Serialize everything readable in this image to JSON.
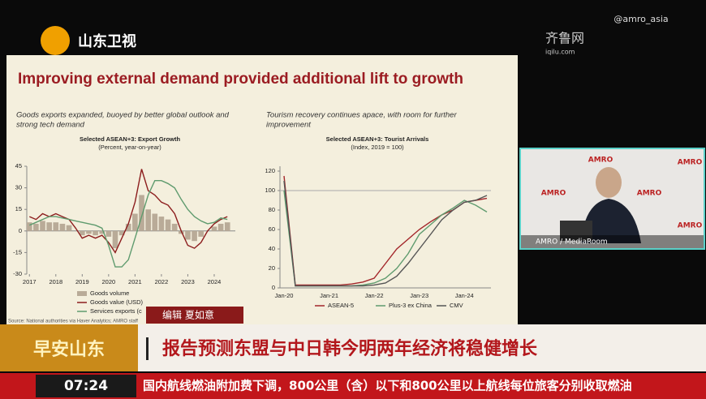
{
  "slide": {
    "title": "Improving external demand provided additional lift to growth",
    "left_caption_1": "Goods exports expanded, buoyed by better global outlook and",
    "left_caption_2": "strong tech demand",
    "right_caption_1": "Tourism recovery continues apace, with room for further",
    "right_caption_2": "improvement",
    "source": "Source: National authorities via Haver Analytics; AMRO staff"
  },
  "chart_data": [
    {
      "type": "line",
      "title": "Selected ASEAN+3: Export Growth",
      "subtitle": "(Percent, year-on-year)",
      "x": [
        2017,
        2017.25,
        2017.5,
        2017.75,
        2018,
        2018.25,
        2018.5,
        2018.75,
        2019,
        2019.25,
        2019.5,
        2019.75,
        2020,
        2020.25,
        2020.5,
        2020.75,
        2021,
        2021.25,
        2021.5,
        2021.75,
        2022,
        2022.25,
        2022.5,
        2022.75,
        2023,
        2023.25,
        2023.5,
        2023.75,
        2024,
        2024.25,
        2024.5
      ],
      "xlim": [
        2016.9,
        2024.8
      ],
      "xticks": [
        2017,
        2018,
        2019,
        2020,
        2021,
        2022,
        2023,
        2024
      ],
      "ylim": [
        -30,
        45
      ],
      "yticks": [
        -30,
        -15,
        0,
        15,
        30,
        45
      ],
      "series": [
        {
          "name": "Goods volume",
          "style": "bar",
          "color": "#b9ab98",
          "values": [
            6,
            5,
            7,
            6,
            6,
            5,
            4,
            0,
            -3,
            -2,
            -3,
            -2,
            -4,
            -12,
            -3,
            5,
            12,
            25,
            15,
            12,
            10,
            8,
            5,
            -2,
            -6,
            -7,
            -4,
            0,
            3,
            5,
            6
          ]
        },
        {
          "name": "Goods value (USD)",
          "style": "line",
          "color": "#8c1d1d",
          "values": [
            10,
            8,
            12,
            10,
            12,
            10,
            8,
            2,
            -5,
            -3,
            -5,
            -3,
            -8,
            -15,
            -5,
            5,
            20,
            43,
            28,
            25,
            20,
            18,
            12,
            0,
            -10,
            -12,
            -8,
            0,
            5,
            8,
            10
          ]
        },
        {
          "name": "Services exports (c",
          "style": "line",
          "color": "#5f9b6e",
          "values": [
            4,
            6,
            8,
            10,
            10,
            9,
            8,
            7,
            6,
            5,
            4,
            2,
            -10,
            -25,
            -25,
            -20,
            -5,
            10,
            25,
            35,
            35,
            33,
            30,
            22,
            15,
            10,
            7,
            5,
            6,
            9,
            8
          ]
        }
      ]
    },
    {
      "type": "line",
      "title": "Selected ASEAN+3: Tourist Arrivals",
      "subtitle": "(Index, 2019 = 100)",
      "categories": [
        "Jan-20",
        null,
        null,
        null,
        "Jan-21",
        null,
        null,
        null,
        "Jan-22",
        null,
        null,
        null,
        "Jan-23",
        null,
        null,
        null,
        "Jan-24",
        null,
        null
      ],
      "ylim": [
        0,
        125
      ],
      "yticks": [
        0,
        20,
        40,
        60,
        80,
        100,
        120
      ],
      "hline": 100,
      "series": [
        {
          "name": "ASEAN-5",
          "style": "line",
          "color": "#a3262a",
          "values": [
            115,
            3,
            3,
            3,
            3,
            3,
            4,
            6,
            10,
            25,
            40,
            50,
            60,
            68,
            75,
            80,
            88,
            90,
            92
          ]
        },
        {
          "name": "Plus-3 ex China",
          "style": "line",
          "color": "#5f9b6e",
          "values": [
            100,
            2,
            2,
            2,
            2,
            2,
            2,
            3,
            5,
            10,
            20,
            35,
            55,
            65,
            75,
            82,
            90,
            85,
            78
          ]
        },
        {
          "name": "CMV",
          "style": "line",
          "color": "#555555",
          "values": [
            110,
            2,
            2,
            2,
            2,
            2,
            2,
            2,
            3,
            5,
            12,
            25,
            40,
            55,
            70,
            80,
            88,
            90,
            95
          ]
        }
      ]
    }
  ],
  "overlay": {
    "channel": "山东卫视",
    "handle": "@amro_asia",
    "site": "齐鲁网",
    "site_url": "iqilu.com",
    "inset_logo": "AMRO",
    "inset_label": "AMRO / MediaRoom",
    "editor": "编辑 夏如意",
    "headline": "报告预测东盟与中日韩今明两年经济将稳健增长",
    "program": "早安山东",
    "time": "07:24",
    "ticker": "国内航线燃油附加费下调，800公里（含）以下和800公里以上航线每位旅客分别收取燃油"
  }
}
